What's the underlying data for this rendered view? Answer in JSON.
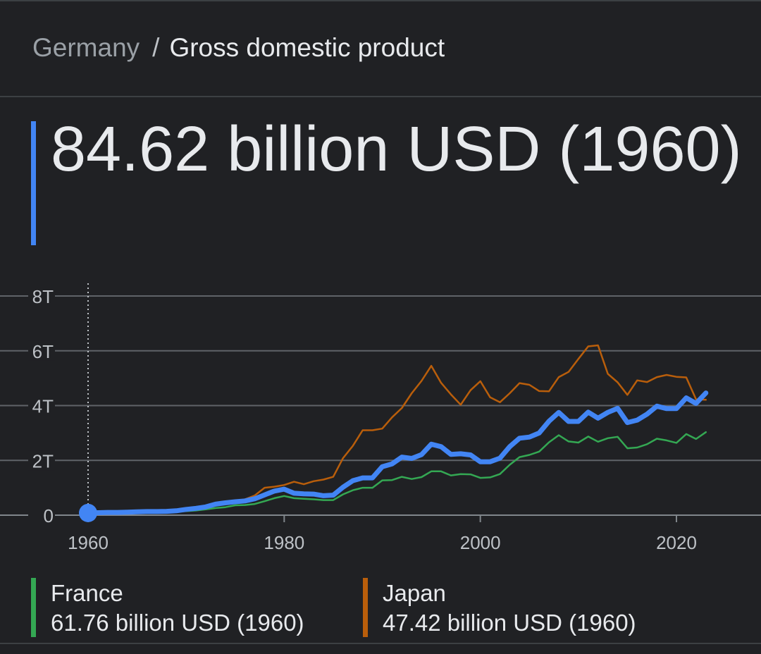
{
  "breadcrumb": {
    "country": "Germany",
    "separator": "/",
    "metric": "Gross domestic product"
  },
  "headline": {
    "value": "84.62 billion USD (1960)",
    "accent_color": "#4285f4"
  },
  "chart_data": {
    "type": "line",
    "title": "",
    "xlabel": "",
    "ylabel": "",
    "xlim": [
      1955,
      2031
    ],
    "ylim": [
      0,
      8
    ],
    "x_ticks": [
      1960,
      1980,
      2000,
      2020
    ],
    "y_ticks": [
      {
        "value": 0,
        "label": "0"
      },
      {
        "value": 2,
        "label": "2T"
      },
      {
        "value": 4,
        "label": "4T"
      },
      {
        "value": 6,
        "label": "6T"
      },
      {
        "value": 8,
        "label": "8T"
      }
    ],
    "grid": true,
    "unit": "trillion USD",
    "highlight": {
      "x": 1960,
      "series": "Germany"
    },
    "x": [
      1960,
      1961,
      1962,
      1963,
      1964,
      1965,
      1966,
      1967,
      1968,
      1969,
      1970,
      1971,
      1972,
      1973,
      1974,
      1975,
      1976,
      1977,
      1978,
      1979,
      1980,
      1981,
      1982,
      1983,
      1984,
      1985,
      1986,
      1987,
      1988,
      1989,
      1990,
      1991,
      1992,
      1993,
      1994,
      1995,
      1996,
      1997,
      1998,
      1999,
      2000,
      2001,
      2002,
      2003,
      2004,
      2005,
      2006,
      2007,
      2008,
      2009,
      2010,
      2011,
      2012,
      2013,
      2014,
      2015,
      2016,
      2017,
      2018,
      2019,
      2020,
      2021,
      2022,
      2023
    ],
    "series": [
      {
        "name": "Germany",
        "color": "#4285f4",
        "values": [
          0.08,
          0.09,
          0.1,
          0.1,
          0.11,
          0.12,
          0.13,
          0.13,
          0.14,
          0.16,
          0.21,
          0.25,
          0.3,
          0.4,
          0.45,
          0.49,
          0.52,
          0.6,
          0.74,
          0.88,
          0.95,
          0.8,
          0.78,
          0.77,
          0.71,
          0.73,
          1.02,
          1.26,
          1.36,
          1.36,
          1.77,
          1.87,
          2.12,
          2.07,
          2.21,
          2.59,
          2.5,
          2.22,
          2.24,
          2.2,
          1.95,
          1.95,
          2.08,
          2.5,
          2.81,
          2.85,
          3.0,
          3.43,
          3.75,
          3.42,
          3.42,
          3.76,
          3.54,
          3.75,
          3.9,
          3.38,
          3.47,
          3.69,
          3.98,
          3.89,
          3.89,
          4.28,
          4.08,
          4.46
        ]
      },
      {
        "name": "France",
        "color": "#34a853",
        "values": [
          0.06,
          0.07,
          0.08,
          0.08,
          0.09,
          0.1,
          0.11,
          0.11,
          0.12,
          0.14,
          0.15,
          0.17,
          0.21,
          0.26,
          0.29,
          0.36,
          0.37,
          0.41,
          0.51,
          0.62,
          0.7,
          0.62,
          0.6,
          0.58,
          0.55,
          0.55,
          0.76,
          0.91,
          1.0,
          1.0,
          1.27,
          1.28,
          1.4,
          1.32,
          1.39,
          1.6,
          1.6,
          1.45,
          1.5,
          1.49,
          1.36,
          1.38,
          1.5,
          1.84,
          2.12,
          2.2,
          2.32,
          2.66,
          2.92,
          2.69,
          2.65,
          2.87,
          2.68,
          2.81,
          2.86,
          2.44,
          2.47,
          2.59,
          2.79,
          2.73,
          2.64,
          2.96,
          2.78,
          3.03
        ]
      },
      {
        "name": "Japan",
        "color": "#b95e0b",
        "values": [
          0.04,
          0.05,
          0.06,
          0.07,
          0.08,
          0.09,
          0.1,
          0.12,
          0.15,
          0.17,
          0.21,
          0.24,
          0.32,
          0.43,
          0.47,
          0.52,
          0.58,
          0.72,
          1.0,
          1.04,
          1.1,
          1.22,
          1.13,
          1.24,
          1.3,
          1.4,
          2.08,
          2.53,
          3.1,
          3.1,
          3.16,
          3.57,
          3.91,
          4.45,
          4.9,
          5.45,
          4.83,
          4.41,
          4.03,
          4.56,
          4.89,
          4.3,
          4.12,
          4.45,
          4.82,
          4.76,
          4.53,
          4.52,
          5.04,
          5.23,
          5.7,
          6.16,
          6.2,
          5.16,
          4.85,
          4.39,
          4.92,
          4.86,
          5.04,
          5.12,
          5.05,
          5.03,
          4.23,
          4.21
        ]
      }
    ]
  },
  "legend": [
    {
      "name": "France",
      "value": "61.76 billion USD (1960)",
      "color": "#34a853"
    },
    {
      "name": "Japan",
      "value": "47.42 billion USD (1960)",
      "color": "#b95e0b"
    }
  ]
}
